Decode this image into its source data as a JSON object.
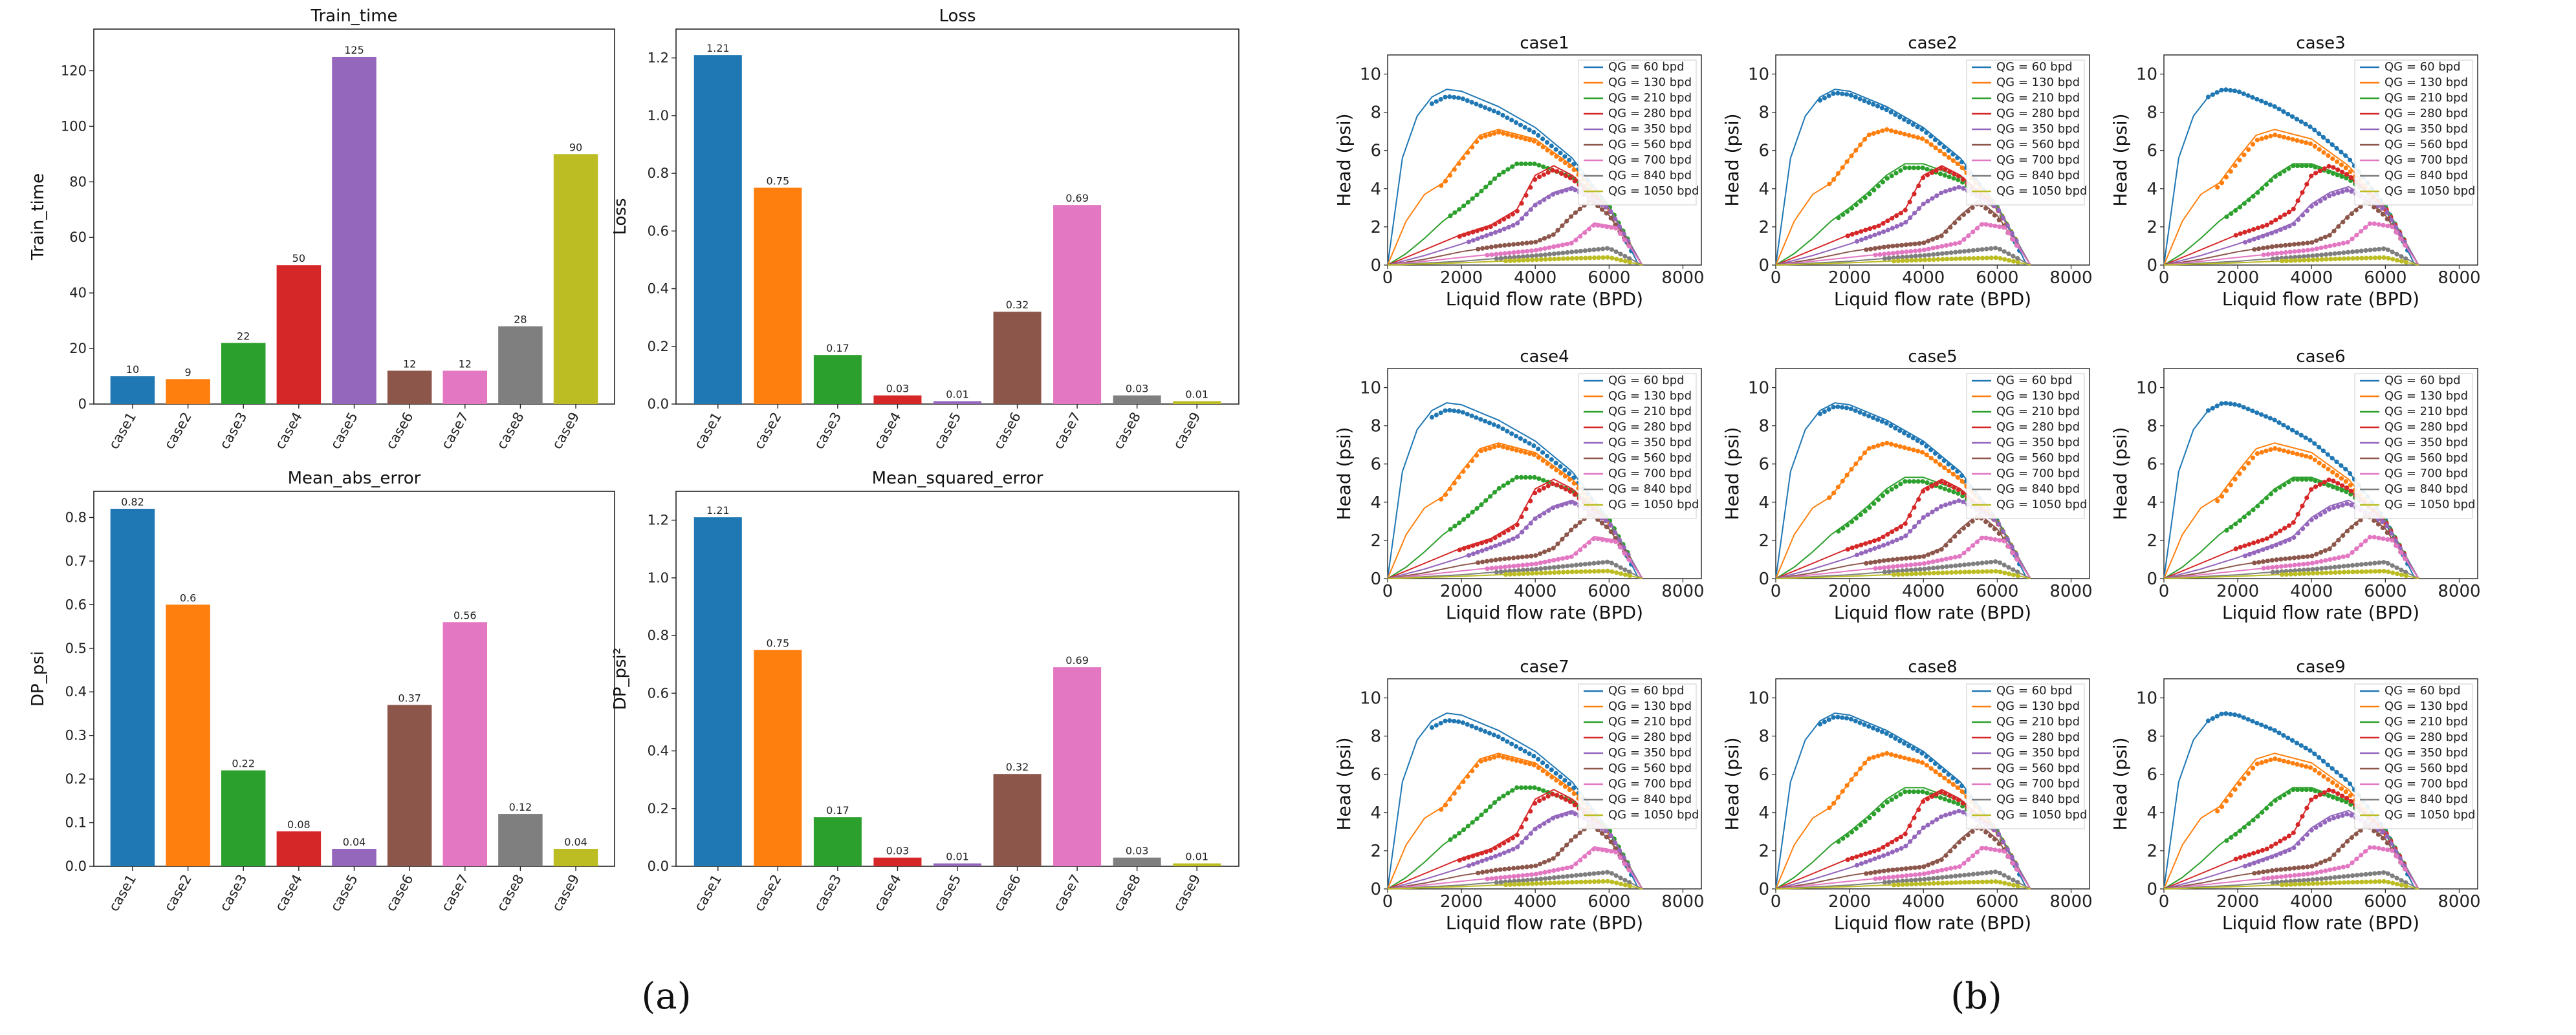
{
  "panel_labels": {
    "a": "(a)",
    "b": "(b)"
  },
  "chart_data": [
    {
      "type": "bar",
      "title": "Train_time",
      "ylabel": "Train_time",
      "categories": [
        "case1",
        "case2",
        "case3",
        "case4",
        "case5",
        "case6",
        "case7",
        "case8",
        "case9"
      ],
      "values": [
        10,
        9,
        22,
        50,
        125,
        12,
        12,
        28,
        90
      ],
      "value_labels": [
        "10",
        "9",
        "22",
        "50",
        "125",
        "12",
        "12",
        "28",
        "90"
      ],
      "ylim": [
        0,
        135
      ],
      "yticks": [
        0,
        20,
        40,
        60,
        80,
        100,
        120
      ],
      "colors": [
        "#1f77b4",
        "#ff7f0e",
        "#2ca02c",
        "#d62728",
        "#9467bd",
        "#8c564b",
        "#e377c2",
        "#7f7f7f",
        "#bcbd22"
      ]
    },
    {
      "type": "bar",
      "title": "Loss",
      "ylabel": "Loss",
      "categories": [
        "case1",
        "case2",
        "case3",
        "case4",
        "case5",
        "case6",
        "case7",
        "case8",
        "case9"
      ],
      "values": [
        1.21,
        0.75,
        0.17,
        0.03,
        0.01,
        0.32,
        0.69,
        0.03,
        0.01
      ],
      "value_labels": [
        "1.21",
        "0.75",
        "0.17",
        "0.03",
        "0.01",
        "0.32",
        "0.69",
        "0.03",
        "0.01"
      ],
      "ylim": [
        0,
        1.3
      ],
      "yticks": [
        0.0,
        0.2,
        0.4,
        0.6,
        0.8,
        1.0,
        1.2
      ],
      "colors": [
        "#1f77b4",
        "#ff7f0e",
        "#2ca02c",
        "#d62728",
        "#9467bd",
        "#8c564b",
        "#e377c2",
        "#7f7f7f",
        "#bcbd22"
      ]
    },
    {
      "type": "bar",
      "title": "Mean_abs_error",
      "ylabel": "DP_psi",
      "categories": [
        "case1",
        "case2",
        "case3",
        "case4",
        "case5",
        "case6",
        "case7",
        "case8",
        "case9"
      ],
      "values": [
        0.82,
        0.6,
        0.22,
        0.08,
        0.04,
        0.37,
        0.56,
        0.12,
        0.04
      ],
      "value_labels": [
        "0.82",
        "0.6",
        "0.22",
        "0.08",
        "0.04",
        "0.37",
        "0.56",
        "0.12",
        "0.04"
      ],
      "ylim": [
        0,
        0.86
      ],
      "yticks": [
        0.0,
        0.1,
        0.2,
        0.3,
        0.4,
        0.5,
        0.6,
        0.7,
        0.8
      ],
      "colors": [
        "#1f77b4",
        "#ff7f0e",
        "#2ca02c",
        "#d62728",
        "#9467bd",
        "#8c564b",
        "#e377c2",
        "#7f7f7f",
        "#bcbd22"
      ]
    },
    {
      "type": "bar",
      "title": "Mean_squared_error",
      "ylabel": "DP_psi²",
      "categories": [
        "case1",
        "case2",
        "case3",
        "case4",
        "case5",
        "case6",
        "case7",
        "case8",
        "case9"
      ],
      "values": [
        1.21,
        0.75,
        0.17,
        0.03,
        0.01,
        0.32,
        0.69,
        0.03,
        0.01
      ],
      "value_labels": [
        "1.21",
        "0.75",
        "0.17",
        "0.03",
        "0.01",
        "0.32",
        "0.69",
        "0.03",
        "0.01"
      ],
      "ylim": [
        0,
        1.3
      ],
      "yticks": [
        0.0,
        0.2,
        0.4,
        0.6,
        0.8,
        1.0,
        1.2
      ],
      "colors": [
        "#1f77b4",
        "#ff7f0e",
        "#2ca02c",
        "#d62728",
        "#9467bd",
        "#8c564b",
        "#e377c2",
        "#7f7f7f",
        "#bcbd22"
      ]
    },
    {
      "type": "line",
      "small_multiples": true,
      "titles": [
        "case1",
        "case2",
        "case3",
        "case4",
        "case5",
        "case6",
        "case7",
        "case8",
        "case9"
      ],
      "xlabel": "Liquid flow rate (BPD)",
      "ylabel": "Head (psi)",
      "xlim": [
        0,
        8500
      ],
      "ylim": [
        0,
        11
      ],
      "xticks": [
        0,
        2000,
        4000,
        6000,
        8000
      ],
      "yticks": [
        0,
        2,
        4,
        6,
        8,
        10
      ],
      "legend": "top-right",
      "series": [
        {
          "name": "QG = 60 bpd",
          "color": "#1f77b4",
          "x": [
            0,
            400,
            800,
            1200,
            1600,
            2000,
            3000,
            4000,
            5000,
            6000,
            6800
          ],
          "y": [
            0,
            5.6,
            7.8,
            8.8,
            9.2,
            9.1,
            8.3,
            7.2,
            5.6,
            3.1,
            0
          ]
        },
        {
          "name": "QG = 130 bpd",
          "color": "#ff7f0e",
          "x": [
            0,
            500,
            1000,
            1500,
            2000,
            2500,
            3000,
            4000,
            5000,
            6000,
            6900
          ],
          "y": [
            0,
            2.3,
            3.7,
            4.3,
            5.6,
            6.8,
            7.1,
            6.6,
            5.2,
            3.0,
            0
          ]
        },
        {
          "name": "QG = 210 bpd",
          "color": "#2ca02c",
          "x": [
            0,
            500,
            1000,
            1500,
            2000,
            2500,
            3000,
            3500,
            4000,
            5000,
            6000,
            6900
          ],
          "y": [
            0,
            0.6,
            1.4,
            2.3,
            3.0,
            3.8,
            4.7,
            5.3,
            5.3,
            4.6,
            3.1,
            0
          ]
        },
        {
          "name": "QG = 280 bpd",
          "color": "#d62728",
          "x": [
            0,
            1000,
            2000,
            2800,
            3500,
            4000,
            4500,
            5000,
            6000,
            6900
          ],
          "y": [
            0,
            0.8,
            1.6,
            2.1,
            2.9,
            4.7,
            5.2,
            4.7,
            3.0,
            0
          ]
        },
        {
          "name": "QG = 350 bpd",
          "color": "#9467bd",
          "x": [
            0,
            1000,
            2000,
            3000,
            3500,
            4000,
            4500,
            5000,
            6000,
            6900
          ],
          "y": [
            0,
            0.5,
            1.1,
            1.8,
            2.2,
            3.2,
            3.8,
            4.1,
            3.0,
            0
          ]
        },
        {
          "name": "QG = 560 bpd",
          "color": "#8c564b",
          "x": [
            0,
            1000,
            2000,
            3000,
            4000,
            4500,
            5000,
            5500,
            6000,
            6900
          ],
          "y": [
            0,
            0.3,
            0.7,
            1.0,
            1.2,
            1.6,
            2.6,
            3.4,
            2.6,
            0
          ]
        },
        {
          "name": "QG = 700 bpd",
          "color": "#e377c2",
          "x": [
            0,
            1000,
            2000,
            3000,
            4000,
            5000,
            5600,
            6200,
            6900
          ],
          "y": [
            0,
            0.2,
            0.4,
            0.6,
            0.8,
            1.2,
            2.2,
            2.0,
            0
          ]
        },
        {
          "name": "QG = 840 bpd",
          "color": "#7f7f7f",
          "x": [
            0,
            1000,
            2000,
            3000,
            4000,
            5000,
            6000,
            6500,
            6900
          ],
          "y": [
            0,
            0.1,
            0.2,
            0.35,
            0.5,
            0.7,
            0.9,
            0.4,
            0
          ]
        },
        {
          "name": "QG = 1050 bpd",
          "color": "#bcbd22",
          "x": [
            0,
            1000,
            2000,
            3000,
            4000,
            5000,
            6000,
            6900
          ],
          "y": [
            0,
            0.06,
            0.12,
            0.2,
            0.28,
            0.35,
            0.4,
            0
          ]
        }
      ]
    }
  ]
}
